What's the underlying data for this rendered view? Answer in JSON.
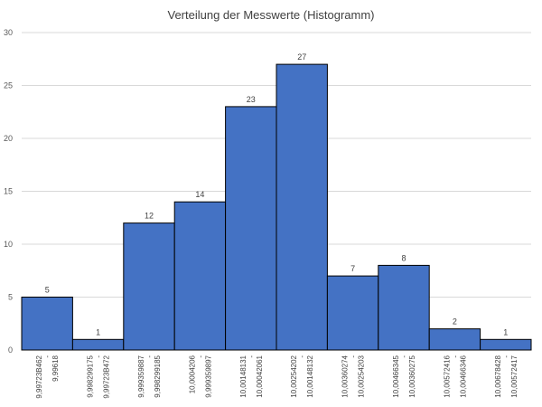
{
  "chart_data": {
    "type": "bar",
    "title": "Verteilung der Messwerte (Histogramm)",
    "xlabel": "",
    "ylabel": "",
    "ylim": [
      0,
      30
    ],
    "yticks": [
      0,
      5,
      10,
      15,
      20,
      25,
      30
    ],
    "grid": true,
    "legend": "none",
    "bar_color": "#4472C4",
    "bar_edge_color": "#000000",
    "gridline_color": "#D9D9D9",
    "categories": [
      [
        "9,99723B462",
        "-",
        "9,99618"
      ],
      [
        "9,998299175",
        "-",
        "9,99723B472"
      ],
      [
        "9,999359887",
        "-",
        "9,998299185"
      ],
      [
        "10,0004206",
        "-",
        "9,999359897"
      ],
      [
        "10,00148131",
        "-",
        "10,00042061"
      ],
      [
        "10,00254202",
        "-",
        "10,00148132"
      ],
      [
        "10,00360274",
        "-",
        "10,00254203"
      ],
      [
        "10,00466345",
        "-",
        "10,00360275"
      ],
      [
        "10,00572416",
        "-",
        "10,00466346"
      ],
      [
        "10,00678428",
        "-",
        "10,00572417"
      ]
    ],
    "values": [
      5,
      1,
      12,
      14,
      23,
      27,
      7,
      8,
      2,
      1
    ]
  }
}
